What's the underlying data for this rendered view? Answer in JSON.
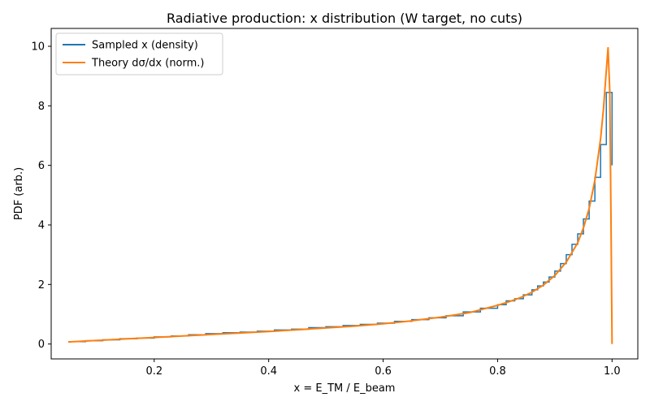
{
  "chart_data": {
    "type": "line",
    "title": "Radiative production: x distribution (W target, no cuts)",
    "xlabel": "x = E_TM / E_beam",
    "ylabel": "PDF (arb.)",
    "xlim": [
      0.02,
      1.045
    ],
    "ylim": [
      -0.5,
      10.6
    ],
    "xticks": [
      0.2,
      0.4,
      0.6,
      0.8,
      1.0
    ],
    "xtick_labels": [
      "0.2",
      "0.4",
      "0.6",
      "0.8",
      "1.0"
    ],
    "yticks": [
      0,
      2,
      4,
      6,
      8,
      10
    ],
    "ytick_labels": [
      "0",
      "2",
      "4",
      "6",
      "8",
      "10"
    ],
    "grid": false,
    "legend_position": "top-left",
    "series": [
      {
        "name": "Sampled x (density)",
        "kind": "step",
        "color": "#1f77b4",
        "bin_edges": [
          0.05,
          0.08,
          0.11,
          0.14,
          0.17,
          0.2,
          0.23,
          0.26,
          0.29,
          0.32,
          0.35,
          0.38,
          0.41,
          0.44,
          0.47,
          0.5,
          0.53,
          0.56,
          0.59,
          0.62,
          0.65,
          0.68,
          0.71,
          0.74,
          0.77,
          0.8,
          0.815,
          0.83,
          0.845,
          0.86,
          0.87,
          0.88,
          0.89,
          0.9,
          0.91,
          0.92,
          0.93,
          0.94,
          0.95,
          0.96,
          0.97,
          0.98,
          0.99,
          1.0
        ],
        "values": [
          0.08,
          0.11,
          0.14,
          0.18,
          0.2,
          0.24,
          0.27,
          0.31,
          0.35,
          0.38,
          0.4,
          0.43,
          0.47,
          0.5,
          0.55,
          0.58,
          0.62,
          0.66,
          0.7,
          0.76,
          0.82,
          0.88,
          0.95,
          1.08,
          1.2,
          1.32,
          1.45,
          1.52,
          1.65,
          1.82,
          1.95,
          2.08,
          2.25,
          2.45,
          2.7,
          3.0,
          3.35,
          3.7,
          4.2,
          4.8,
          5.6,
          6.7,
          8.45,
          6.0
        ]
      },
      {
        "name": "Theory dσ/dx (norm.)",
        "kind": "line",
        "color": "#ff7f0e",
        "x": [
          0.05,
          0.1,
          0.15,
          0.2,
          0.25,
          0.3,
          0.35,
          0.4,
          0.45,
          0.5,
          0.55,
          0.6,
          0.65,
          0.7,
          0.75,
          0.8,
          0.82,
          0.84,
          0.86,
          0.88,
          0.9,
          0.92,
          0.94,
          0.95,
          0.96,
          0.97,
          0.98,
          0.985,
          0.99,
          0.993,
          0.996,
          0.998,
          1.0
        ],
        "y": [
          0.07,
          0.12,
          0.17,
          0.22,
          0.27,
          0.32,
          0.37,
          0.42,
          0.48,
          0.54,
          0.6,
          0.68,
          0.78,
          0.9,
          1.05,
          1.3,
          1.42,
          1.56,
          1.74,
          1.98,
          2.3,
          2.75,
          3.4,
          3.9,
          4.55,
          5.5,
          6.9,
          7.9,
          9.2,
          9.95,
          8.5,
          4.5,
          0.0
        ]
      }
    ]
  }
}
